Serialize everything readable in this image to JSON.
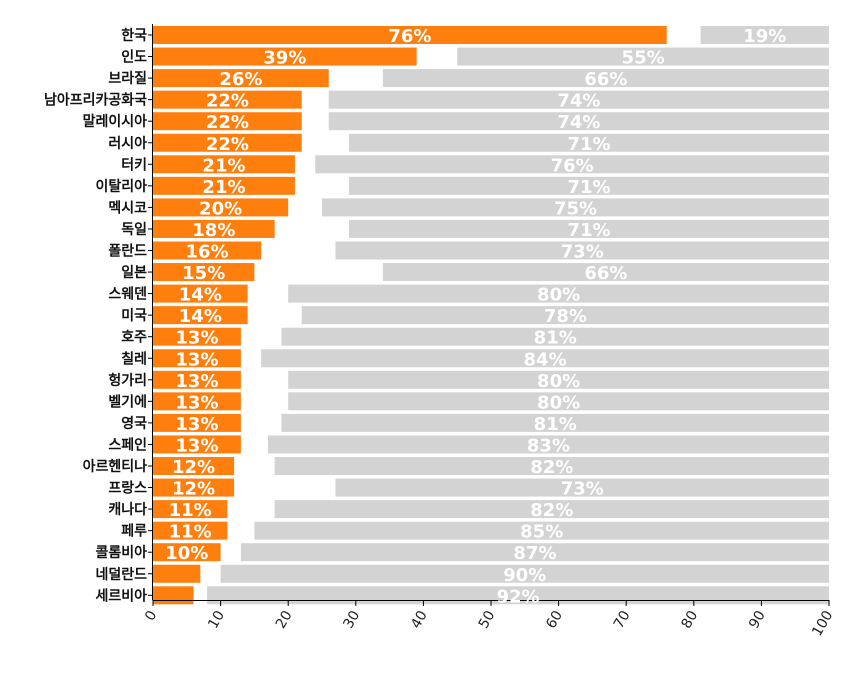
{
  "chart_data": {
    "type": "bar",
    "orientation": "horizontal",
    "stacked": true,
    "categories": [
      "한국",
      "인도",
      "브라질",
      "남아프리카공화국",
      "말레이시아",
      "러시아",
      "터키",
      "이탈리아",
      "멕시코",
      "독일",
      "폴란드",
      "일본",
      "스웨덴",
      "미국",
      "호주",
      "칠레",
      "헝가리",
      "벨기에",
      "영국",
      "스페인",
      "아르헨티나",
      "프랑스",
      "캐나다",
      "페루",
      "콜롬비아",
      "네덜란드",
      "세르비아"
    ],
    "series": [
      {
        "color": "#ff7f0e",
        "values": [
          76,
          39,
          26,
          22,
          22,
          22,
          21,
          21,
          20,
          18,
          16,
          15,
          14,
          14,
          13,
          13,
          13,
          13,
          13,
          13,
          12,
          12,
          11,
          11,
          10,
          7,
          6
        ],
        "labels": [
          "76%",
          "39%",
          "26%",
          "22%",
          "22%",
          "22%",
          "21%",
          "21%",
          "20%",
          "18%",
          "16%",
          "15%",
          "14%",
          "14%",
          "13%",
          "13%",
          "13%",
          "13%",
          "13%",
          "13%",
          "12%",
          "12%",
          "11%",
          "11%",
          "10%",
          "",
          ""
        ]
      },
      {
        "color": "#d3d3d3",
        "values": [
          19,
          55,
          66,
          74,
          74,
          71,
          76,
          71,
          75,
          71,
          73,
          66,
          80,
          78,
          81,
          84,
          80,
          80,
          81,
          83,
          82,
          73,
          82,
          85,
          87,
          90,
          92
        ],
        "labels": [
          "19%",
          "55%",
          "66%",
          "74%",
          "74%",
          "71%",
          "76%",
          "71%",
          "75%",
          "71%",
          "73%",
          "66%",
          "80%",
          "78%",
          "81%",
          "84%",
          "80%",
          "80%",
          "81%",
          "83%",
          "82%",
          "73%",
          "82%",
          "85%",
          "87%",
          "90%",
          "92%"
        ]
      }
    ],
    "xlim": [
      0,
      100
    ],
    "xticks": [
      "0",
      "10",
      "20",
      "30",
      "40",
      "50",
      "60",
      "70",
      "80",
      "90",
      "100"
    ],
    "grid": false,
    "legend": "none"
  }
}
